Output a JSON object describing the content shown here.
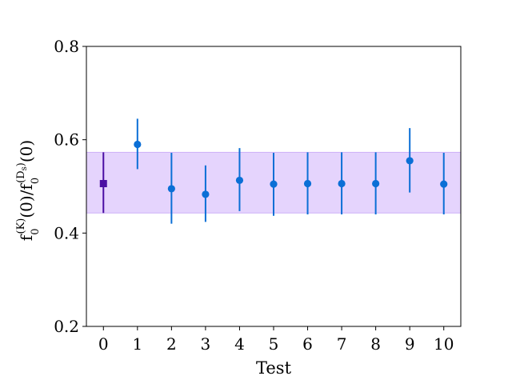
{
  "chart_data": {
    "type": "scatter",
    "title": "",
    "xlabel": "Test",
    "ylabel": {
      "base": "f",
      "sub1": "0",
      "sup1": "(K)",
      "mid": "(0)/",
      "sub2": "0",
      "sup2": "(D",
      "sup2_sub": "s",
      "sup2_end": ")",
      "end": "(0)"
    },
    "xlim": [
      -0.5,
      10.5
    ],
    "ylim": [
      0.2,
      0.8
    ],
    "x_ticks": [
      "0",
      "1",
      "2",
      "3",
      "4",
      "5",
      "6",
      "7",
      "8",
      "9",
      "10"
    ],
    "y_ticks": [
      "0.2",
      "0.4",
      "0.6",
      "0.8"
    ],
    "grid": false,
    "band": {
      "y_low": 0.443,
      "y_high": 0.573,
      "color": "#e5d4fd",
      "edge_color": "#cdb0f8"
    },
    "reference_point": {
      "x": 0,
      "y": 0.506,
      "err_low": 0.443,
      "err_high": 0.573,
      "color": "#4b0fa3"
    },
    "series": [
      {
        "color": "#0b6fd6",
        "points": [
          {
            "x": 1,
            "y": 0.59,
            "err_low": 0.537,
            "err_high": 0.645
          },
          {
            "x": 2,
            "y": 0.495,
            "err_low": 0.42,
            "err_high": 0.572
          },
          {
            "x": 3,
            "y": 0.483,
            "err_low": 0.424,
            "err_high": 0.545
          },
          {
            "x": 4,
            "y": 0.513,
            "err_low": 0.447,
            "err_high": 0.582
          },
          {
            "x": 5,
            "y": 0.505,
            "err_low": 0.437,
            "err_high": 0.572
          },
          {
            "x": 6,
            "y": 0.506,
            "err_low": 0.44,
            "err_high": 0.573
          },
          {
            "x": 7,
            "y": 0.506,
            "err_low": 0.44,
            "err_high": 0.573
          },
          {
            "x": 8,
            "y": 0.506,
            "err_low": 0.44,
            "err_high": 0.573
          },
          {
            "x": 9,
            "y": 0.555,
            "err_low": 0.487,
            "err_high": 0.625
          },
          {
            "x": 10,
            "y": 0.505,
            "err_low": 0.44,
            "err_high": 0.572
          }
        ]
      }
    ]
  }
}
